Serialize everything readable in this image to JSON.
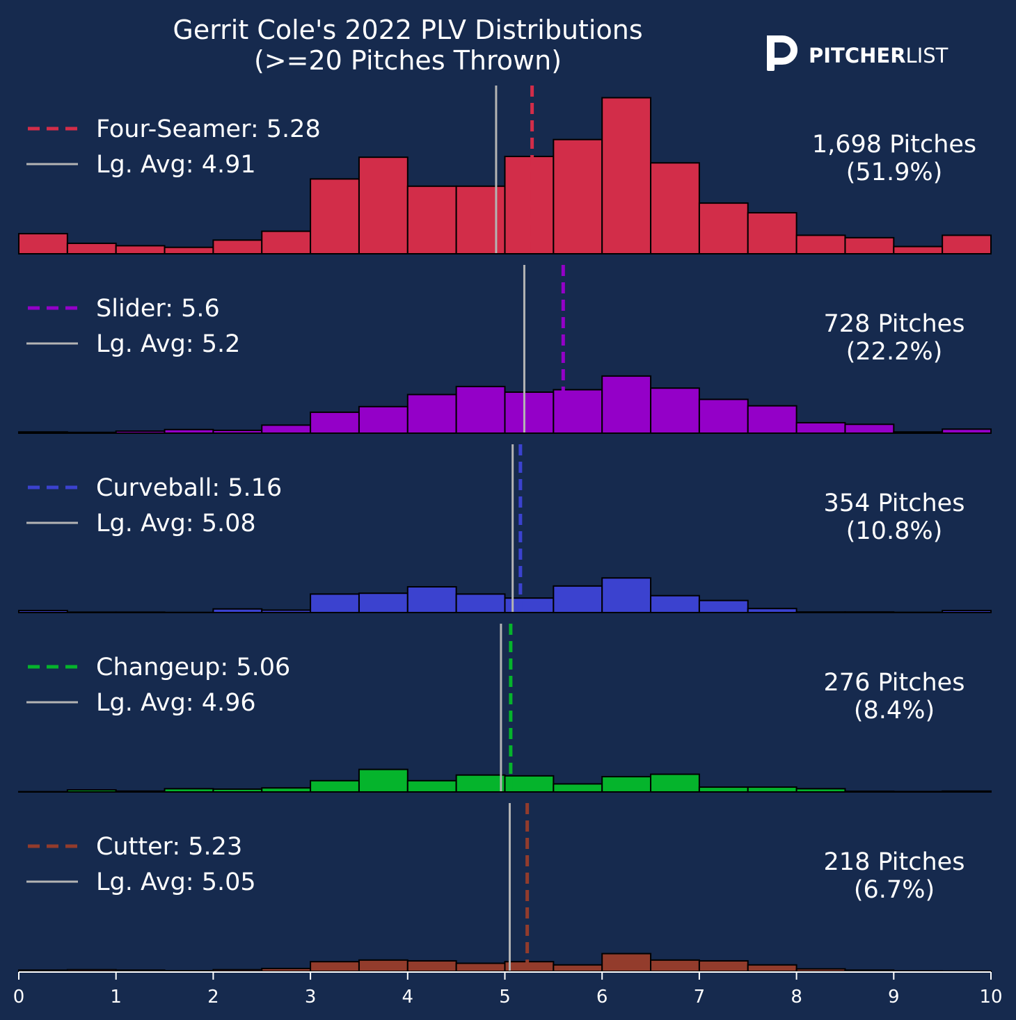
{
  "colors": {
    "background": "#162a4e",
    "league_avg_line": "#b4b4b4",
    "bar_edge": "#000000"
  },
  "logo": {
    "icon": "pitcherlist-p-logo-icon",
    "text_bold": "PITCHER",
    "text_light": "LIST"
  },
  "chart_data": {
    "type": "histogram",
    "title": "Gerrit Cole's 2022 PLV Distributions",
    "subtitle": "(>=20 Pitches Thrown)",
    "xlabel": "",
    "ylabel": "",
    "xlim": [
      0,
      10
    ],
    "xticks": [
      0,
      1,
      2,
      3,
      4,
      5,
      6,
      7,
      8,
      9,
      10
    ],
    "bin_width": 0.5,
    "bin_starts": [
      0,
      0.5,
      1,
      1.5,
      2,
      2.5,
      3,
      3.5,
      4,
      4.5,
      5,
      5.5,
      6,
      6.5,
      7,
      7.5,
      8,
      8.5,
      9,
      9.5
    ],
    "grid": false,
    "panels": [
      {
        "pitch": "Four-Seamer",
        "avg_label": "Four-Seamer: 5.28",
        "avg": 5.28,
        "lg_label": "Lg. Avg: 4.91",
        "lg_avg": 4.91,
        "pitches_label": "1,698 Pitches",
        "pct_label": "(51.9%)",
        "color": "#d22d49",
        "counts": [
          25,
          13,
          10,
          8,
          17,
          28,
          93,
          120,
          84,
          84,
          121,
          142,
          194,
          113,
          63,
          51,
          23,
          20,
          9,
          23
        ]
      },
      {
        "pitch": "Slider",
        "avg_label": "Slider: 5.6",
        "avg": 5.6,
        "lg_label": "Lg. Avg: 5.2",
        "lg_avg": 5.2,
        "pitches_label": "728 Pitches",
        "pct_label": "(22.2%)",
        "color": "#9400c8",
        "counts": [
          1.5,
          1.0,
          2.5,
          4.5,
          3.5,
          10,
          26,
          33,
          48,
          58,
          51,
          54,
          71,
          56,
          42,
          34,
          13,
          11,
          1.5,
          5
        ]
      },
      {
        "pitch": "Curveball",
        "avg_label": "Curveball: 5.16",
        "avg": 5.16,
        "lg_label": "Lg. Avg: 5.08",
        "lg_avg": 5.08,
        "pitches_label": "354 Pitches",
        "pct_label": "(10.8%)",
        "color": "#3b42cf",
        "counts": [
          2.5,
          0.5,
          0.5,
          0.2,
          4.5,
          3,
          23,
          24,
          32,
          23,
          18,
          33,
          43,
          21,
          15,
          5,
          0.7,
          0.7,
          0.3,
          2.5
        ]
      },
      {
        "pitch": "Changeup",
        "avg_label": "Changeup: 5.06",
        "avg": 5.06,
        "lg_label": "Lg. Avg: 4.96",
        "lg_avg": 4.96,
        "pitches_label": "276 Pitches",
        "pct_label": "(8.4%)",
        "color": "#05b42c",
        "counts": [
          0.3,
          2.5,
          1,
          4,
          3.5,
          5,
          14,
          28,
          14,
          21,
          20,
          10,
          19,
          22,
          6,
          6,
          4,
          0.8,
          0.5,
          1
        ]
      },
      {
        "pitch": "Cutter",
        "avg_label": "Cutter: 5.23",
        "avg": 5.23,
        "lg_label": "Lg. Avg: 5.05",
        "lg_avg": 5.05,
        "pitches_label": "218 Pitches",
        "pct_label": "(6.7%)",
        "color": "#933c2c",
        "counts": [
          1.5,
          2,
          1.5,
          0.8,
          2,
          3.5,
          12,
          14,
          13,
          10,
          12,
          8,
          22,
          14,
          13,
          8,
          3,
          1.5,
          0.5,
          0.3
        ]
      }
    ]
  }
}
